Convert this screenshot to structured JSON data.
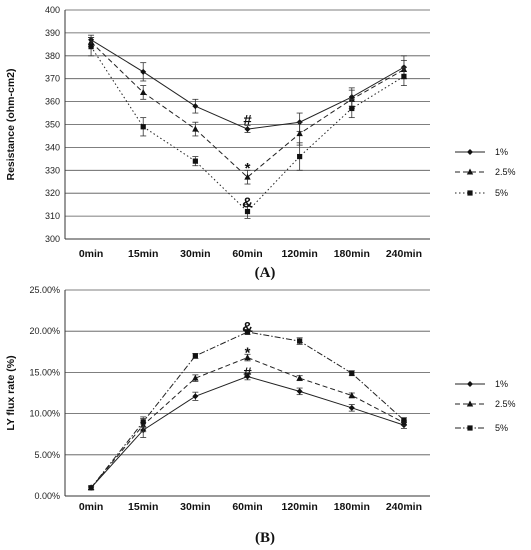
{
  "chart_data": [
    {
      "type": "line",
      "panel_label": "(A)",
      "ylabel": "Resistance (ohm-cm2)",
      "xlabel": "",
      "categories": [
        "0min",
        "15min",
        "30min",
        "60min",
        "120min",
        "180min",
        "240min"
      ],
      "ylim": [
        300,
        400
      ],
      "yticks": [
        "300",
        "310",
        "320",
        "330",
        "340",
        "350",
        "360",
        "370",
        "380",
        "390",
        "400"
      ],
      "grid": true,
      "legend_position": "right",
      "series": [
        {
          "name": "1%",
          "marker": "diamond",
          "line": "solid",
          "values": [
            387,
            373,
            358,
            348,
            351,
            362,
            375
          ],
          "errors": [
            2,
            4,
            3,
            1.5,
            4,
            4,
            5
          ]
        },
        {
          "name": "2.5%",
          "marker": "triangle",
          "line": "dashed",
          "values": [
            386,
            364,
            348,
            327,
            346,
            361,
            374
          ],
          "errors": [
            2,
            3,
            3,
            3,
            5,
            4,
            4
          ]
        },
        {
          "name": "5%",
          "marker": "square",
          "line": "dotted",
          "values": [
            384,
            349,
            334,
            312,
            336,
            357,
            371
          ],
          "errors": [
            4,
            4,
            2,
            3,
            6,
            4,
            4
          ]
        }
      ],
      "annotations": [
        {
          "text": "#",
          "category": "60min",
          "y": 352
        },
        {
          "text": "*",
          "category": "60min",
          "y": 331
        },
        {
          "text": "&",
          "category": "60min",
          "y": 316
        }
      ]
    },
    {
      "type": "line",
      "panel_label": "(B)",
      "ylabel": "LY flux rate (%)",
      "xlabel": "",
      "categories": [
        "0min",
        "15min",
        "30min",
        "60min",
        "120min",
        "180min",
        "240min"
      ],
      "ylim": [
        0,
        25
      ],
      "yticks": [
        "0.00%",
        "5.00%",
        "10.00%",
        "15.00%",
        "20.00%",
        "25.00%"
      ],
      "grid": true,
      "legend_position": "right",
      "series": [
        {
          "name": "1%",
          "marker": "diamond",
          "line": "solid",
          "values": [
            1.0,
            8.0,
            12.1,
            14.5,
            12.7,
            10.7,
            8.6
          ],
          "errors": [
            0.2,
            0.9,
            0.5,
            0.4,
            0.4,
            0.4,
            0.4
          ]
        },
        {
          "name": "2.5%",
          "marker": "triangle",
          "line": "dashed",
          "values": [
            1.0,
            8.6,
            14.3,
            16.8,
            14.3,
            12.2,
            8.9
          ],
          "errors": [
            0.2,
            0.8,
            0.4,
            0.4,
            0.3,
            0.3,
            0.3
          ]
        },
        {
          "name": "5%",
          "marker": "square",
          "line": "dashdot",
          "values": [
            1.0,
            9.0,
            17.0,
            19.9,
            18.8,
            14.9,
            9.2
          ],
          "errors": [
            0.2,
            0.6,
            0.3,
            0.3,
            0.4,
            0.3,
            0.3
          ]
        }
      ],
      "annotations": [
        {
          "text": "&",
          "category": "60min",
          "y": 20.5
        },
        {
          "text": "*",
          "category": "60min",
          "y": 17.4
        },
        {
          "text": "#",
          "category": "60min",
          "y": 15.0
        }
      ]
    }
  ]
}
